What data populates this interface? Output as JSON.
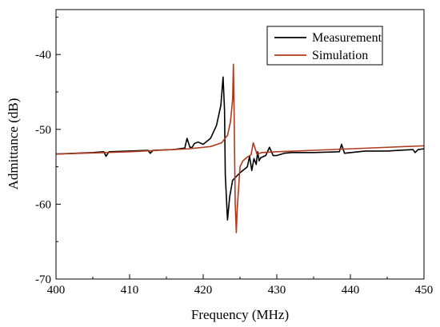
{
  "chart_data": {
    "type": "line",
    "xlabel": "Frequency (MHz)",
    "ylabel": "Admittance (dB)",
    "xlim": [
      400,
      450
    ],
    "ylim": [
      -70,
      -34
    ],
    "xticks": [
      400,
      410,
      420,
      430,
      440,
      450
    ],
    "yticks": [
      -70,
      -60,
      -50,
      -40
    ],
    "grid": false,
    "legend": "top-right",
    "series": [
      {
        "name": "Measurement",
        "color": "#000000",
        "x": [
          400,
          405,
          406.5,
          406.8,
          407.2,
          410,
          412.5,
          412.8,
          413.2,
          416,
          417.5,
          417.8,
          418.2,
          418.5,
          418.8,
          419.3,
          420,
          421,
          421.8,
          422.4,
          422.7,
          422.9,
          423.0,
          423.3,
          423.6,
          424.0,
          425.0,
          426.0,
          426.3,
          426.6,
          426.9,
          427.2,
          427.4,
          427.6,
          427.8,
          428.5,
          429.0,
          429.5,
          430,
          431,
          432,
          435,
          438.5,
          438.8,
          439.2,
          442,
          445,
          448.5,
          448.8,
          449.2,
          450
        ],
        "y": [
          -53.3,
          -53.1,
          -53.0,
          -53.6,
          -53.0,
          -52.9,
          -52.8,
          -53.2,
          -52.8,
          -52.7,
          -52.5,
          -51.2,
          -52.4,
          -52.4,
          -51.9,
          -51.7,
          -52.0,
          -51.2,
          -49.5,
          -46.8,
          -43.0,
          -47.5,
          -56.0,
          -62.1,
          -59.0,
          -56.8,
          -55.8,
          -55.0,
          -53.6,
          -55.5,
          -53.9,
          -54.7,
          -53.0,
          -54.2,
          -53.8,
          -53.5,
          -52.4,
          -53.5,
          -53.5,
          -53.2,
          -53.1,
          -53.1,
          -53.0,
          -52.0,
          -53.2,
          -52.9,
          -52.9,
          -52.7,
          -53.1,
          -52.7,
          -52.6
        ]
      },
      {
        "name": "Simulation",
        "color": "#b03a1e",
        "x": [
          400,
          410,
          418,
          421,
          422.5,
          423.3,
          423.7,
          424.0,
          424.1,
          424.2,
          424.25,
          424.35,
          424.5,
          424.6,
          424.8,
          425.0,
          425.4,
          426.0,
          426.5,
          426.8,
          427.3,
          428,
          430,
          435,
          440,
          445,
          450
        ],
        "y": [
          -53.3,
          -53.0,
          -52.6,
          -52.3,
          -51.8,
          -50.8,
          -49.0,
          -46.0,
          -41.3,
          -47.5,
          -52.0,
          -60.0,
          -63.8,
          -61.0,
          -58.0,
          -55.0,
          -54.2,
          -53.7,
          -53.4,
          -51.8,
          -53.3,
          -53.1,
          -53.0,
          -52.8,
          -52.6,
          -52.4,
          -52.2
        ]
      }
    ]
  }
}
